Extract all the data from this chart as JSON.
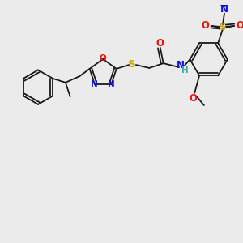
{
  "background_color": "#ebebeb",
  "figsize": [
    3.0,
    3.0
  ],
  "dpi": 100,
  "bond_color": "#1a1a1a",
  "atom_colors": {
    "N": "#1010ee",
    "O": "#ee1010",
    "S": "#ccaa00",
    "H": "#4aabab",
    "C": "#1a1a1a"
  },
  "lw": 1.3,
  "fs": 8.5,
  "fs_s": 7.0
}
